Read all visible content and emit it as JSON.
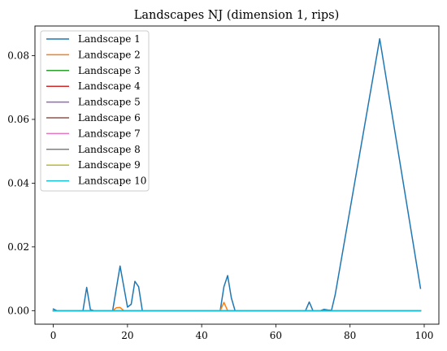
{
  "chart_data": {
    "type": "line",
    "title": "Landscapes NJ (dimension 1, rips)",
    "xlabel": "",
    "ylabel": "",
    "xlim": [
      -4.95,
      103.95
    ],
    "ylim": [
      -0.00425,
      0.0893
    ],
    "x_ticks": [
      0,
      20,
      40,
      60,
      80,
      100
    ],
    "x_tick_labels": [
      "0",
      "20",
      "40",
      "60",
      "80",
      "100"
    ],
    "y_ticks": [
      0,
      0.02,
      0.04,
      0.06,
      0.08
    ],
    "y_tick_labels": [
      "0.00",
      "0.02",
      "0.04",
      "0.06",
      "0.08"
    ],
    "grid": false,
    "legend_position": "top-left",
    "series": [
      {
        "name": "Landscape 1",
        "color": "#1f77b4",
        "points": [
          [
            0,
            0.0005
          ],
          [
            1,
            0
          ],
          [
            8,
            0
          ],
          [
            9,
            0.0073
          ],
          [
            10,
            0.0003
          ],
          [
            11,
            0
          ],
          [
            16,
            0
          ],
          [
            18,
            0.014
          ],
          [
            20,
            0.0011
          ],
          [
            21,
            0.002
          ],
          [
            22,
            0.0092
          ],
          [
            23,
            0.0075
          ],
          [
            24,
            0
          ],
          [
            45,
            0
          ],
          [
            46,
            0.0075
          ],
          [
            47,
            0.011
          ],
          [
            48,
            0.004
          ],
          [
            49,
            0
          ],
          [
            68,
            0
          ],
          [
            69,
            0.0027
          ],
          [
            70,
            0
          ],
          [
            72,
            0
          ],
          [
            73,
            0.0004
          ],
          [
            74,
            0.0002
          ],
          [
            75,
            0.0001
          ],
          [
            76,
            0.005
          ],
          [
            88,
            0.0853
          ],
          [
            99,
            0.007
          ]
        ]
      },
      {
        "name": "Landscape 2",
        "color": "#ff7f0e",
        "points": [
          [
            0,
            0
          ],
          [
            16,
            0
          ],
          [
            17,
            0.0009
          ],
          [
            18,
            0.001
          ],
          [
            19,
            0
          ],
          [
            45,
            0
          ],
          [
            46,
            0.0026
          ],
          [
            47,
            0
          ],
          [
            99,
            0
          ]
        ]
      },
      {
        "name": "Landscape 3",
        "color": "#2ca02c",
        "points": [
          [
            0,
            0
          ],
          [
            99,
            0
          ]
        ]
      },
      {
        "name": "Landscape 4",
        "color": "#d62728",
        "points": [
          [
            0,
            0
          ],
          [
            99,
            0
          ]
        ]
      },
      {
        "name": "Landscape 5",
        "color": "#9467bd",
        "points": [
          [
            0,
            0
          ],
          [
            99,
            0
          ]
        ]
      },
      {
        "name": "Landscape 6",
        "color": "#8c564b",
        "points": [
          [
            0,
            0
          ],
          [
            99,
            0
          ]
        ]
      },
      {
        "name": "Landscape 7",
        "color": "#e377c2",
        "points": [
          [
            0,
            0
          ],
          [
            99,
            0
          ]
        ]
      },
      {
        "name": "Landscape 8",
        "color": "#7f7f7f",
        "points": [
          [
            0,
            0
          ],
          [
            99,
            0
          ]
        ]
      },
      {
        "name": "Landscape 9",
        "color": "#bcbd22",
        "points": [
          [
            0,
            0
          ],
          [
            99,
            0
          ]
        ]
      },
      {
        "name": "Landscape 10",
        "color": "#17becf",
        "points": [
          [
            0,
            0
          ],
          [
            99,
            0
          ]
        ]
      }
    ]
  }
}
